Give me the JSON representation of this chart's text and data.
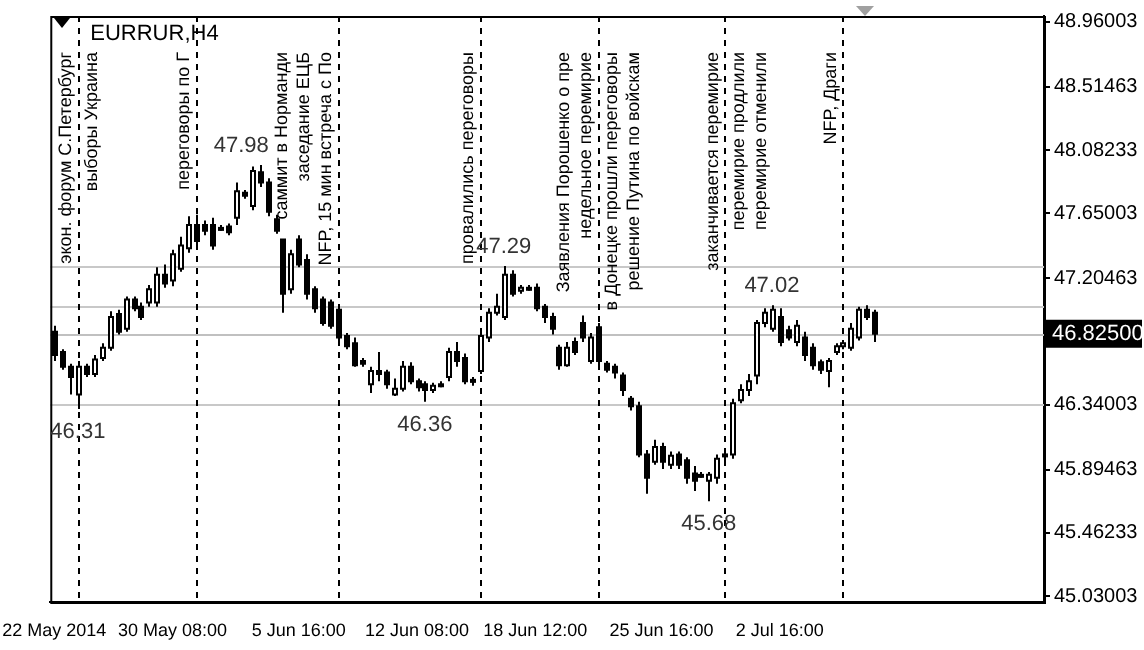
{
  "chart_data": {
    "type": "candlestick",
    "title": "EURRUR,H4",
    "color": "#000000",
    "categories": [
      "22 May 2014",
      null,
      null,
      null,
      null,
      null,
      null,
      null,
      null,
      null,
      null,
      null,
      null,
      null,
      null,
      "30 May 08:00",
      null,
      null,
      null,
      null,
      null,
      null,
      null,
      null,
      null,
      null,
      null,
      null,
      null,
      null,
      null,
      "5 Jun 16:00",
      null,
      null,
      null,
      null,
      null,
      null,
      null,
      null,
      null,
      null,
      null,
      null,
      null,
      null,
      "12 Jun 08:00",
      null,
      null,
      null,
      null,
      null,
      null,
      null,
      null,
      null,
      null,
      null,
      null,
      null,
      null,
      "18 Jun 12:00",
      null,
      null,
      null,
      null,
      null,
      null,
      null,
      null,
      null,
      null,
      null,
      null,
      null,
      null,
      null,
      "25 Jun 16:00",
      null,
      null,
      null,
      null,
      null,
      null,
      null,
      null,
      null,
      null,
      null,
      null,
      null,
      null,
      "2 Jul 16:00",
      null,
      null,
      null,
      null,
      null,
      null,
      null,
      null,
      null,
      null,
      null,
      null,
      null,
      null,
      null,
      null,
      null,
      null,
      null,
      null,
      null,
      null,
      null,
      null,
      null,
      null,
      null,
      null,
      null,
      null,
      null,
      null,
      null
    ],
    "ohlc": [
      [
        46.84,
        46.88,
        46.64,
        46.68
      ],
      [
        46.7,
        46.72,
        46.58,
        46.6
      ],
      [
        46.6,
        46.62,
        46.41,
        46.53
      ],
      [
        46.41,
        46.64,
        46.31,
        46.6
      ],
      [
        46.6,
        46.62,
        46.53,
        46.55
      ],
      [
        46.55,
        46.68,
        46.53,
        46.65
      ],
      [
        46.66,
        46.76,
        46.64,
        46.73
      ],
      [
        46.73,
        46.98,
        46.71,
        46.94
      ],
      [
        46.96,
        46.99,
        46.82,
        46.84
      ],
      [
        46.86,
        47.08,
        46.84,
        47.06
      ],
      [
        47.06,
        47.08,
        46.98,
        47.0
      ],
      [
        47.01,
        47.04,
        46.92,
        46.94
      ],
      [
        47.04,
        47.16,
        47.01,
        47.13
      ],
      [
        47.04,
        47.28,
        47.01,
        47.23
      ],
      [
        47.23,
        47.3,
        47.14,
        47.17
      ],
      [
        47.19,
        47.4,
        47.15,
        47.37
      ],
      [
        47.27,
        47.49,
        47.25,
        47.43
      ],
      [
        47.41,
        47.63,
        47.38,
        47.57
      ],
      [
        47.57,
        47.64,
        47.43,
        47.46
      ],
      [
        47.57,
        47.6,
        47.5,
        47.53
      ],
      [
        47.57,
        47.62,
        47.4,
        47.43
      ],
      [
        47.54,
        47.57,
        47.53,
        47.55
      ],
      [
        47.56,
        47.58,
        47.5,
        47.52
      ],
      [
        47.62,
        47.86,
        47.57,
        47.8
      ],
      [
        47.79,
        47.81,
        47.75,
        47.77
      ],
      [
        47.7,
        47.97,
        47.67,
        47.94
      ],
      [
        47.93,
        47.98,
        47.83,
        47.86
      ],
      [
        47.86,
        47.89,
        47.63,
        47.66
      ],
      [
        47.61,
        47.64,
        47.51,
        47.53
      ],
      [
        47.47,
        47.47,
        46.97,
        47.1
      ],
      [
        47.13,
        47.4,
        47.1,
        47.37
      ],
      [
        47.47,
        47.5,
        47.28,
        47.3
      ],
      [
        47.33,
        47.37,
        47.06,
        47.1
      ],
      [
        47.13,
        47.15,
        46.97,
        47.0
      ],
      [
        47.06,
        47.08,
        46.88,
        46.9
      ],
      [
        47.04,
        47.06,
        46.86,
        46.88
      ],
      [
        46.99,
        47.01,
        46.76,
        46.8
      ],
      [
        46.81,
        46.83,
        46.72,
        46.74
      ],
      [
        46.76,
        46.8,
        46.6,
        46.61
      ],
      [
        46.64,
        46.66,
        46.6,
        46.62
      ],
      [
        46.48,
        46.6,
        46.42,
        46.57
      ],
      [
        46.57,
        46.7,
        46.5,
        46.55
      ],
      [
        46.56,
        46.58,
        46.45,
        46.48
      ],
      [
        46.41,
        46.52,
        46.4,
        46.45
      ],
      [
        46.45,
        46.64,
        46.43,
        46.6
      ],
      [
        46.6,
        46.63,
        46.48,
        46.5
      ],
      [
        46.5,
        46.52,
        46.43,
        46.46
      ],
      [
        46.48,
        46.5,
        46.36,
        46.44
      ],
      [
        46.44,
        46.49,
        46.42,
        46.47
      ],
      [
        46.48,
        46.5,
        46.46,
        46.48
      ],
      [
        46.53,
        46.73,
        46.5,
        46.7
      ],
      [
        46.7,
        46.77,
        46.6,
        46.64
      ],
      [
        46.66,
        46.69,
        46.48,
        46.5
      ],
      [
        46.5,
        46.53,
        46.47,
        46.51
      ],
      [
        46.57,
        46.84,
        46.55,
        46.81
      ],
      [
        46.8,
        47.0,
        46.77,
        46.97
      ],
      [
        46.97,
        47.1,
        46.95,
        47.01
      ],
      [
        46.94,
        47.29,
        46.92,
        47.23
      ],
      [
        47.23,
        47.26,
        47.08,
        47.1
      ],
      [
        47.12,
        47.16,
        47.1,
        47.14
      ],
      [
        47.14,
        47.16,
        47.12,
        47.14
      ],
      [
        47.14,
        47.17,
        46.98,
        47.0
      ],
      [
        47.01,
        47.03,
        46.9,
        46.94
      ],
      [
        46.94,
        46.97,
        46.82,
        46.86
      ],
      [
        46.73,
        46.75,
        46.58,
        46.61
      ],
      [
        46.61,
        46.77,
        46.6,
        46.73
      ],
      [
        46.77,
        46.8,
        46.68,
        46.7
      ],
      [
        46.9,
        46.95,
        46.77,
        46.8
      ],
      [
        46.64,
        46.83,
        46.62,
        46.8
      ],
      [
        46.87,
        46.9,
        46.6,
        46.64
      ],
      [
        46.62,
        46.64,
        46.56,
        46.58
      ],
      [
        46.6,
        46.62,
        46.52,
        46.56
      ],
      [
        46.54,
        46.56,
        46.4,
        46.44
      ],
      [
        46.38,
        46.4,
        46.3,
        46.33
      ],
      [
        46.33,
        46.36,
        45.98,
        46.0
      ],
      [
        46.0,
        46.03,
        45.73,
        45.84
      ],
      [
        45.95,
        46.1,
        45.93,
        46.05
      ],
      [
        46.05,
        46.08,
        45.9,
        45.95
      ],
      [
        45.93,
        46.02,
        45.9,
        45.99
      ],
      [
        46.0,
        46.02,
        45.9,
        45.93
      ],
      [
        45.96,
        45.98,
        45.8,
        45.84
      ],
      [
        45.87,
        45.92,
        45.75,
        45.82
      ],
      [
        45.86,
        45.88,
        45.84,
        45.86
      ],
      [
        45.82,
        45.88,
        45.68,
        45.86
      ],
      [
        45.84,
        46.0,
        45.8,
        45.97
      ],
      [
        45.99,
        46.02,
        45.96,
        46.0
      ],
      [
        46.0,
        46.38,
        45.97,
        46.35
      ],
      [
        46.37,
        46.48,
        46.35,
        46.44
      ],
      [
        46.44,
        46.55,
        46.4,
        46.5
      ],
      [
        46.54,
        46.92,
        46.48,
        46.9
      ],
      [
        46.9,
        47.0,
        46.87,
        46.97
      ],
      [
        46.86,
        47.02,
        46.84,
        46.99
      ],
      [
        46.94,
        47.0,
        46.74,
        46.77
      ],
      [
        46.85,
        46.88,
        46.78,
        46.8
      ],
      [
        46.77,
        46.92,
        46.74,
        46.88
      ],
      [
        46.8,
        46.84,
        46.64,
        46.68
      ],
      [
        46.73,
        46.76,
        46.58,
        46.61
      ],
      [
        46.63,
        46.65,
        46.55,
        46.58
      ],
      [
        46.57,
        46.66,
        46.46,
        46.64
      ],
      [
        46.7,
        46.76,
        46.68,
        46.74
      ],
      [
        46.74,
        46.78,
        46.72,
        46.76
      ],
      [
        46.73,
        46.9,
        46.71,
        46.86
      ],
      [
        46.8,
        47.01,
        46.78,
        46.99
      ],
      [
        46.99,
        47.02,
        46.92,
        46.94
      ],
      [
        46.97,
        46.99,
        46.77,
        46.825
      ],
      null,
      null,
      null,
      null,
      null,
      null,
      null,
      null,
      null,
      null,
      null,
      null,
      null,
      null,
      null,
      null,
      null,
      null,
      null,
      null,
      null
    ],
    "colors": [
      "#000000",
      "#000000",
      "#000000",
      "#ffffff",
      "#000000",
      "#ffffff",
      "#ffffff",
      "#ffffff",
      "#000000",
      "#ffffff",
      "#000000",
      "#000000",
      "#ffffff",
      "#ffffff",
      "#000000",
      "#ffffff",
      "#ffffff",
      "#ffffff",
      "#000000",
      "#000000",
      "#000000",
      "#ffffff",
      "#000000",
      "#ffffff",
      "#000000",
      "#ffffff",
      "#000000",
      "#000000",
      "#000000",
      "#000000",
      "#ffffff",
      "#000000",
      "#000000",
      "#000000",
      "#000000",
      "#000000",
      "#000000",
      "#000000",
      "#000000",
      "#000000",
      "#ffffff",
      "#000000",
      "#000000",
      "#ffffff",
      "#ffffff",
      "#000000",
      "#000000",
      "#000000",
      "#ffffff",
      "#ffffff",
      "#ffffff",
      "#000000",
      "#000000",
      "#ffffff",
      "#ffffff",
      "#ffffff",
      "#ffffff",
      "#ffffff",
      "#000000",
      "#ffffff",
      "#ffffff",
      "#000000",
      "#000000",
      "#000000",
      "#000000",
      "#ffffff",
      "#000000",
      "#000000",
      "#ffffff",
      "#000000",
      "#000000",
      "#000000",
      "#000000",
      "#000000",
      "#000000",
      "#000000",
      "#ffffff",
      "#000000",
      "#ffffff",
      "#000000",
      "#000000",
      "#000000",
      "#ffffff",
      "#ffffff",
      "#ffffff",
      "#ffffff",
      "#ffffff",
      "#ffffff",
      "#ffffff",
      "#ffffff",
      "#ffffff",
      "#ffffff",
      "#000000",
      "#000000",
      "#ffffff",
      "#000000",
      "#000000",
      "#000000",
      "#ffffff",
      "#ffffff",
      "#ffffff",
      "#ffffff",
      "#ffffff",
      "#000000",
      "#000000",
      null,
      null,
      null,
      null,
      null,
      null,
      null,
      null,
      null,
      null,
      null,
      null,
      null,
      null,
      null,
      null,
      null,
      null,
      null,
      null,
      null
    ],
    "ylim": [
      44.99,
      49.0
    ],
    "yticks": [
      45.03003,
      45.46233,
      45.89463,
      46.34003,
      47.20463,
      47.65003,
      48.08233,
      48.51463,
      48.96003
    ],
    "ref_lines": [
      {
        "axis": "y",
        "value": 47.29,
        "color": "#c8c8c8"
      },
      {
        "axis": "y",
        "value": 47.02,
        "color": "#c8c8c8"
      },
      {
        "axis": "y",
        "value": 46.34,
        "color": "#c8c8c8"
      },
      {
        "axis": "y",
        "value": 46.825,
        "color": "#c0c0c0",
        "label": "46.82500"
      }
    ],
    "annotations": [
      "47.98",
      "46.31",
      "46.36",
      "47.29",
      "45.68",
      "47.02",
      "экон. форум С.Петербург",
      "выборы Украина",
      "переговоры по Г",
      "саммит в Норманди",
      "заседание ЕЦБ",
      "NFP, 15 мин встреча с По",
      "провалились переговоры",
      "Заявления Порошенко о пре",
      "недельное перемирие",
      "в Донецке прошли переговоры",
      "решение Путина по войскам",
      "заканчивается перемирие",
      "перемирие продлили",
      "перемирие отменили",
      "NFP, Драги"
    ]
  }
}
